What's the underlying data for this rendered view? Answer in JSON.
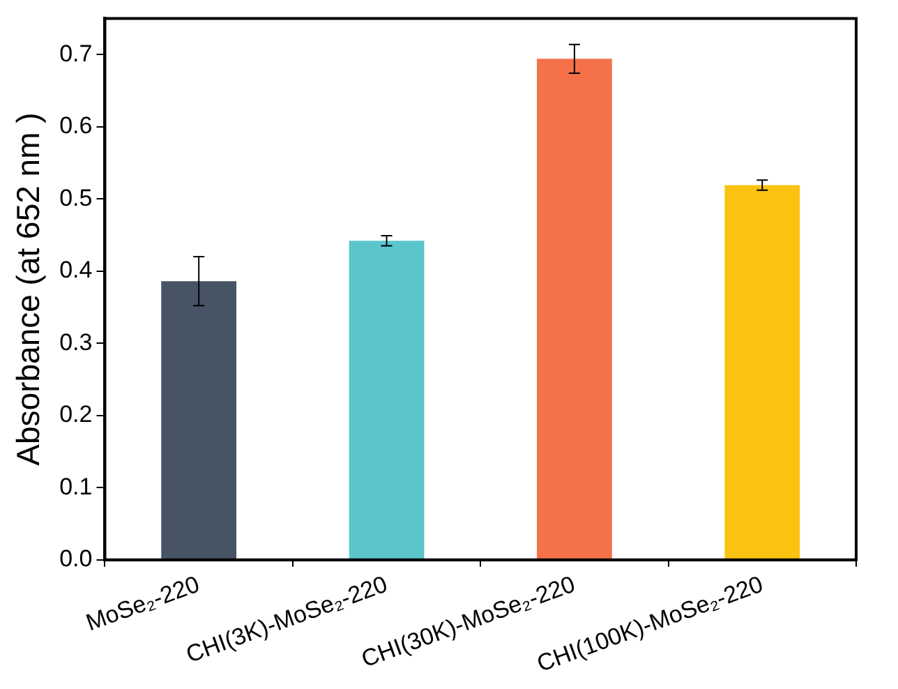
{
  "chart_data": {
    "type": "bar",
    "ylabel": "Absorbance (at 652 nm )",
    "categories": [
      "MoSe₂-220",
      "CHI(3K)-MoSe₂-220",
      "CHI(30K)-MoSe₂-220",
      "CHI(100K)-MoSe₂-220"
    ],
    "values": [
      0.386,
      0.442,
      0.694,
      0.519
    ],
    "errors": [
      0.034,
      0.007,
      0.02,
      0.007
    ],
    "colors": [
      "#465466",
      "#5bc5cc",
      "#f4714a",
      "#fac312"
    ],
    "ylim": [
      0,
      0.75
    ],
    "yticks": [
      {
        "value": 0,
        "label": "0.0"
      },
      0.1,
      0.2,
      0.3,
      0.4,
      0.5,
      0.6,
      0.7
    ],
    "grid": false,
    "legend": false
  }
}
